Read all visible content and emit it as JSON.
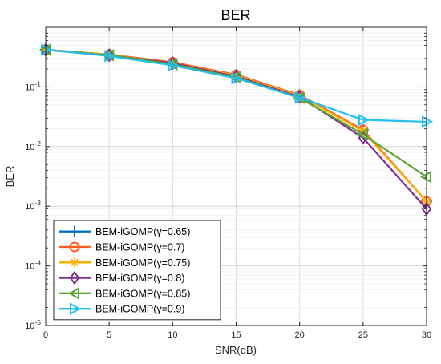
{
  "chart_data": {
    "type": "line",
    "title": "BER",
    "xlabel": "SNR(dB)",
    "ylabel": "BER",
    "x": [
      0,
      5,
      10,
      15,
      20,
      25,
      30
    ],
    "xlim": [
      0,
      30
    ],
    "ylim": [
      1e-05,
      1
    ],
    "yscale": "log",
    "x_ticks": [
      "0",
      "5",
      "10",
      "15",
      "20",
      "25",
      "30"
    ],
    "y_ticks": [
      {
        "base": "10",
        "exp": "-1",
        "value": 0.1
      },
      {
        "base": "10",
        "exp": "-2",
        "value": 0.01
      },
      {
        "base": "10",
        "exp": "-3",
        "value": 0.001
      },
      {
        "base": "10",
        "exp": "-4",
        "value": 0.0001
      },
      {
        "base": "10",
        "exp": "-5",
        "value": 1e-05
      }
    ],
    "grid": true,
    "legend_position": "bottom-left",
    "series": [
      {
        "name": "BEM-iGOMP(γ=0.65)",
        "color": "#0072BD",
        "marker": "plus",
        "values": [
          0.42,
          0.35,
          0.26,
          0.16,
          0.073,
          0.019,
          0.0012
        ]
      },
      {
        "name": "BEM-iGOMP(γ=0.7)",
        "color": "#FF5A1F",
        "marker": "circle",
        "values": [
          0.42,
          0.35,
          0.26,
          0.16,
          0.073,
          0.019,
          0.0012
        ]
      },
      {
        "name": "BEM-iGOMP(γ=0.75)",
        "color": "#FFB000",
        "marker": "asterisk",
        "values": [
          0.42,
          0.35,
          0.25,
          0.155,
          0.071,
          0.018,
          0.0012
        ]
      },
      {
        "name": "BEM-iGOMP(γ=0.8)",
        "color": "#7E2F8E",
        "marker": "diamond",
        "values": [
          0.42,
          0.34,
          0.25,
          0.15,
          0.068,
          0.014,
          0.0009
        ]
      },
      {
        "name": "BEM-iGOMP(γ=0.85)",
        "color": "#5BA532",
        "marker": "triangle-left",
        "values": [
          0.42,
          0.34,
          0.24,
          0.145,
          0.065,
          0.016,
          0.0031
        ]
      },
      {
        "name": "BEM-iGOMP(γ=0.9)",
        "color": "#22BEEF",
        "marker": "triangle-right",
        "values": [
          0.42,
          0.33,
          0.23,
          0.14,
          0.066,
          0.028,
          0.026
        ]
      }
    ]
  }
}
